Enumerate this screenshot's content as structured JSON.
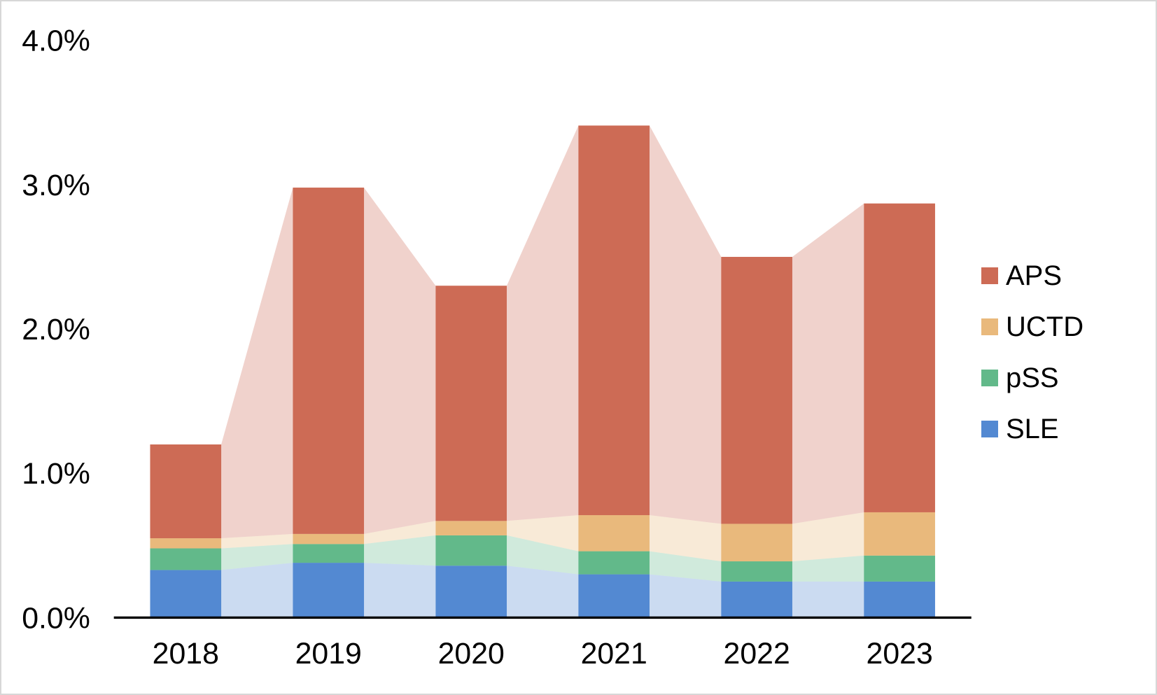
{
  "chart_data": {
    "type": "bar",
    "subtype": "stacked-bars-with-matching-stacked-area-background",
    "title": "",
    "xlabel": "",
    "ylabel": "",
    "categories": [
      "2018",
      "2019",
      "2020",
      "2021",
      "2022",
      "2023"
    ],
    "series": [
      {
        "name": "SLE",
        "color": "#5389D2",
        "values": [
          0.33,
          0.38,
          0.36,
          0.3,
          0.25,
          0.25
        ]
      },
      {
        "name": "pSS",
        "color": "#62B98A",
        "values": [
          0.15,
          0.13,
          0.21,
          0.16,
          0.14,
          0.18
        ]
      },
      {
        "name": "UCTD",
        "color": "#E9B97C",
        "values": [
          0.07,
          0.07,
          0.1,
          0.25,
          0.26,
          0.3
        ]
      },
      {
        "name": "APS",
        "color": "#CD6B55",
        "values": [
          0.65,
          2.4,
          1.63,
          2.7,
          1.85,
          2.14
        ]
      }
    ],
    "stack_totals": [
      1.2,
      2.98,
      2.3,
      3.41,
      2.5,
      2.87
    ],
    "y_ticks": [
      "0.0%",
      "1.0%",
      "2.0%",
      "3.0%",
      "4.0%"
    ],
    "ylim": [
      0,
      4
    ],
    "grid": "off",
    "area_opacity": 0.3,
    "axis_color": "#000000",
    "legend": {
      "position": "right",
      "items": [
        {
          "label": "APS",
          "color": "#CD6B55"
        },
        {
          "label": "UCTD",
          "color": "#E9B97C"
        },
        {
          "label": "pSS",
          "color": "#62B98A"
        },
        {
          "label": "SLE",
          "color": "#5389D2"
        }
      ]
    }
  }
}
